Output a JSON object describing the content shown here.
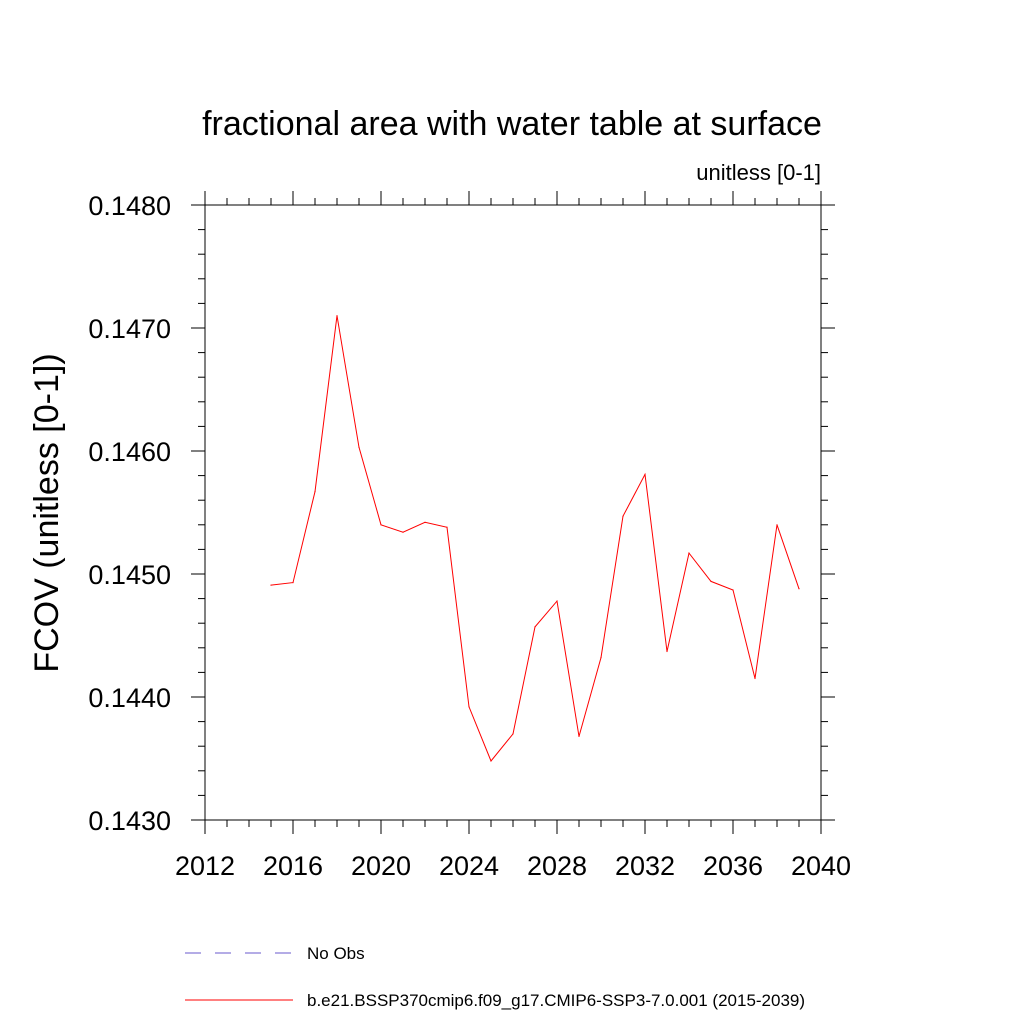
{
  "chart_data": {
    "type": "line",
    "title": "fractional area with water table at surface",
    "subtitle": "unitless [0-1]",
    "xlabel": "",
    "ylabel": "FCOV  (unitless [0-1])",
    "xlim": [
      2012,
      2040
    ],
    "ylim": [
      0.143,
      0.148
    ],
    "x_ticks": [
      "2012",
      "2016",
      "2020",
      "2024",
      "2028",
      "2032",
      "2036",
      "2040"
    ],
    "y_ticks": [
      "0.1430",
      "0.1440",
      "0.1450",
      "0.1460",
      "0.1470",
      "0.1480"
    ],
    "grid": false,
    "legend_position": "bottom",
    "series": [
      {
        "name": "b.e21.BSSP370cmip6.f09_g17.CMIP6-SSP3-7.0.001 (2015-2039)",
        "color": "#ff0000",
        "style": "solid",
        "x": [
          2015,
          2016,
          2017,
          2018,
          2019,
          2020,
          2021,
          2022,
          2023,
          2024,
          2025,
          2026,
          2027,
          2028,
          2029,
          2030,
          2031,
          2032,
          2033,
          2034,
          2035,
          2036,
          2037,
          2038,
          2039
        ],
        "values": [
          0.14491,
          0.14493,
          0.14567,
          0.1471,
          0.14603,
          0.1454,
          0.14534,
          0.14542,
          0.14538,
          0.14392,
          0.14348,
          0.1437,
          0.14457,
          0.14478,
          0.14368,
          0.14432,
          0.14547,
          0.14581,
          0.14437,
          0.14517,
          0.14494,
          0.14487,
          0.14415,
          0.1454,
          0.14488
        ]
      }
    ],
    "legend": [
      {
        "label": "No Obs",
        "color": "#6a5acd",
        "style": "dashed"
      },
      {
        "label": "b.e21.BSSP370cmip6.f09_g17.CMIP6-SSP3-7.0.001 (2015-2039)",
        "color": "#ff0000",
        "style": "solid"
      }
    ]
  }
}
